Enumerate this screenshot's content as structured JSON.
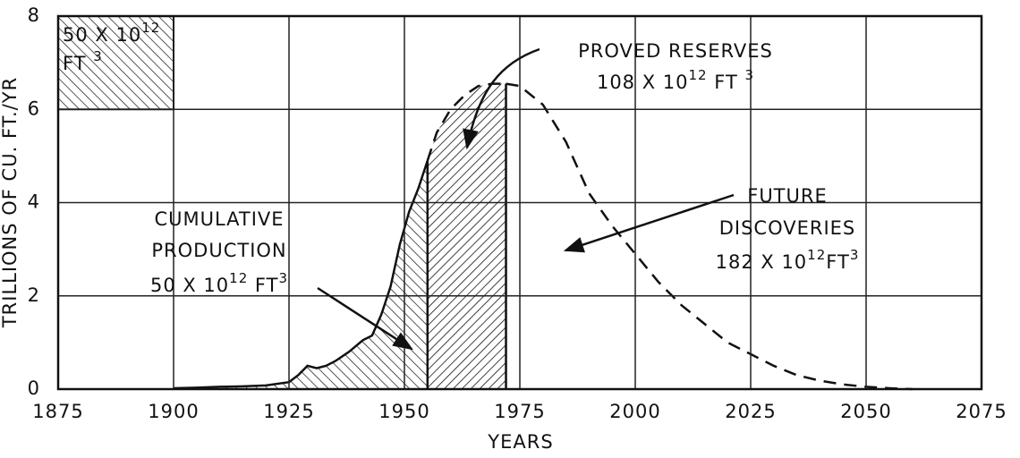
{
  "chart_data": {
    "type": "line",
    "xlabel": "YEARS",
    "ylabel": "TRILLIONS OF CU. FT./YR",
    "xlim": [
      1875,
      2075
    ],
    "ylim": [
      0,
      8
    ],
    "xticks": [
      1875,
      1900,
      1925,
      1950,
      1975,
      2000,
      2025,
      2050,
      2075
    ],
    "yticks": [
      0,
      2,
      4,
      6,
      8
    ],
    "grid": true,
    "color": "#111111",
    "key_box": {
      "x": [
        1875,
        1900
      ],
      "y": [
        6,
        8
      ],
      "hatch": "back"
    },
    "series": [
      {
        "name": "CUMULATIVE PRODUCTION",
        "line_style": "solid",
        "hatch": "back",
        "x": [
          1900,
          1905,
          1910,
          1915,
          1920,
          1925,
          1927,
          1929,
          1931,
          1933,
          1935,
          1938,
          1941,
          1943,
          1945,
          1947,
          1949,
          1951,
          1953,
          1955
        ],
        "values": [
          0.02,
          0.03,
          0.05,
          0.06,
          0.08,
          0.15,
          0.3,
          0.5,
          0.45,
          0.5,
          0.6,
          0.8,
          1.05,
          1.15,
          1.6,
          2.2,
          3.1,
          3.8,
          4.3,
          4.9
        ]
      },
      {
        "name": "PROVED RESERVES",
        "line_style": "dashed",
        "hatch": "forward",
        "x": [
          1955,
          1957,
          1960,
          1963,
          1966,
          1969,
          1972
        ],
        "values": [
          4.9,
          5.5,
          6.0,
          6.3,
          6.5,
          6.55,
          6.55
        ]
      },
      {
        "name": "FUTURE DISCOVERIES",
        "line_style": "dashed",
        "x": [
          1972,
          1975,
          1980,
          1985,
          1990,
          1995,
          2000,
          2005,
          2010,
          2015,
          2020,
          2025,
          2030,
          2035,
          2040,
          2045,
          2050,
          2055,
          2060
        ],
        "values": [
          6.55,
          6.5,
          6.1,
          5.3,
          4.2,
          3.5,
          2.9,
          2.3,
          1.8,
          1.4,
          1.0,
          0.75,
          0.5,
          0.3,
          0.18,
          0.1,
          0.05,
          0.02,
          0.0
        ]
      }
    ],
    "annotations": [
      {
        "lines": [
          [
            {
              "text": "50 X 10"
            },
            {
              "text": "12",
              "sup": true
            }
          ],
          [
            {
              "text": "FT "
            },
            {
              "text": "3",
              "sup": true
            }
          ]
        ]
      },
      {
        "lines": [
          [
            {
              "text": "PROVED  RESERVES"
            }
          ],
          [
            {
              "text": "108 X 10"
            },
            {
              "text": "12",
              "sup": true
            },
            {
              "text": "  FT "
            },
            {
              "text": "3",
              "sup": true
            }
          ]
        ]
      },
      {
        "lines": [
          [
            {
              "text": "FUTURE"
            }
          ],
          [
            {
              "text": "DISCOVERIES"
            }
          ],
          [
            {
              "text": "182 X 10"
            },
            {
              "text": "12",
              "sup": true
            },
            {
              "text": "FT"
            },
            {
              "text": "3",
              "sup": true
            }
          ]
        ]
      },
      {
        "lines": [
          [
            {
              "text": "CUMULATIVE"
            }
          ],
          [
            {
              "text": "PRODUCTION"
            }
          ],
          [
            {
              "text": "50 X 10"
            },
            {
              "text": "12",
              "sup": true
            },
            {
              "text": " FT"
            },
            {
              "text": "3",
              "sup": true
            }
          ]
        ]
      }
    ]
  }
}
